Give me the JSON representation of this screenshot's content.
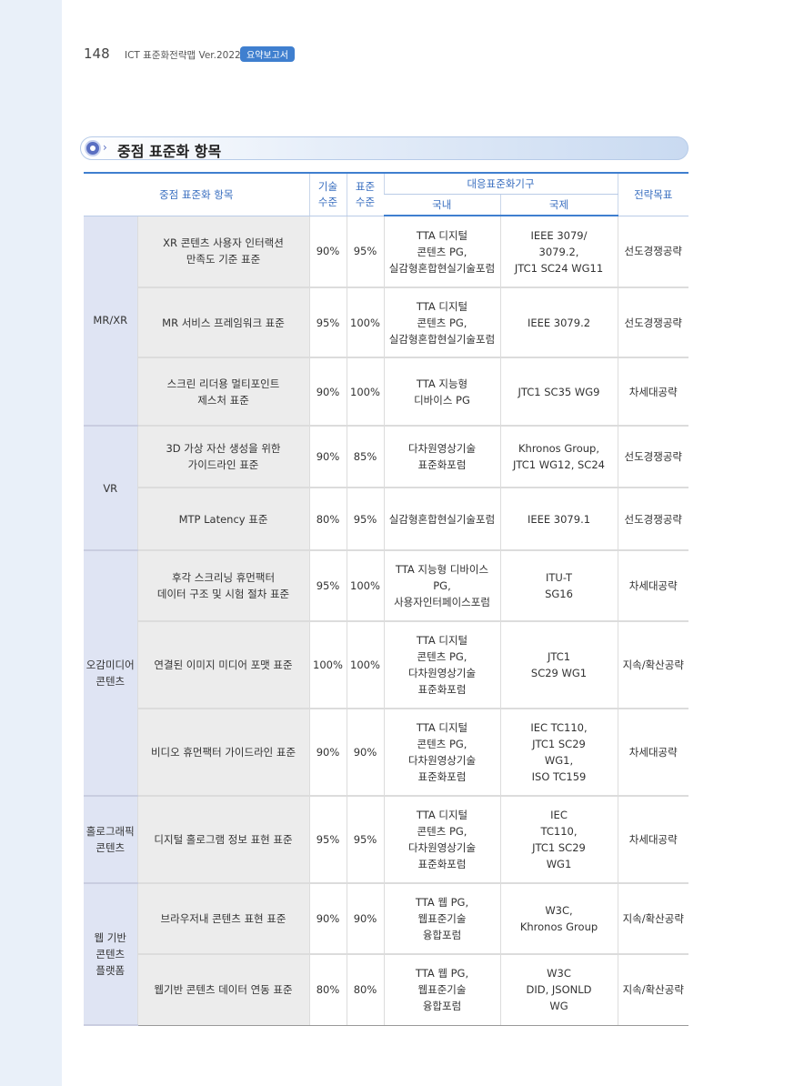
{
  "header": {
    "page_number": "148",
    "running_title": "ICT 표준화전략맵 Ver.2022",
    "badge": "요약보고서"
  },
  "section": {
    "title": "중점 표준화 항목"
  },
  "table": {
    "headers": {
      "item": "중점 표준화 항목",
      "tech": "기술\n수준",
      "std": "표준\n수준",
      "org": "대응표준화기구",
      "domestic": "국내",
      "intl": "국제",
      "goal": "전략목표"
    },
    "groups": [
      {
        "name": "MR/XR",
        "rows": [
          {
            "item": "XR 콘텐츠 사용자 인터랙션\n만족도 기준 표준",
            "tech": "90%",
            "std": "95%",
            "domestic": "TTA 디지털\n콘텐츠 PG,\n실감형혼합현실기술포럼",
            "intl": "IEEE 3079/\n3079.2,\nJTC1 SC24 WG11",
            "goal": "선도경쟁공략"
          },
          {
            "item": "MR 서비스 프레임워크 표준",
            "tech": "95%",
            "std": "100%",
            "domestic": "TTA 디지털\n콘텐츠 PG,\n실감형혼합현실기술포럼",
            "intl": "IEEE 3079.2",
            "goal": "선도경쟁공략"
          },
          {
            "item": "스크린 리더용 멀티포인트\n제스처 표준",
            "tech": "90%",
            "std": "100%",
            "domestic": "TTA 지능형\n디바이스 PG",
            "intl": "JTC1 SC35 WG9",
            "goal": "차세대공략"
          }
        ]
      },
      {
        "name": "VR",
        "rows": [
          {
            "item": "3D 가상 자산 생성을 위한\n가이드라인 표준",
            "tech": "90%",
            "std": "85%",
            "domestic": "다차원영상기술\n표준화포럼",
            "intl": "Khronos Group,\nJTC1  WG12, SC24",
            "goal": "선도경쟁공략"
          },
          {
            "item": "MTP Latency 표준",
            "tech": "80%",
            "std": "95%",
            "domestic": "실감형혼합현실기술포럼",
            "intl": "IEEE 3079.1",
            "goal": "선도경쟁공략"
          }
        ]
      },
      {
        "name": "오감미디어\n콘텐츠",
        "rows": [
          {
            "item": "후각 스크리닝 휴먼팩터\n데이터 구조 및 시험 절차 표준",
            "tech": "95%",
            "std": "100%",
            "domestic": "TTA 지능형 디바이스 PG,\n사용자인터페이스포럼",
            "intl": "ITU-T\nSG16",
            "goal": "차세대공략"
          },
          {
            "item": "연결된 이미지 미디어 포맷 표준",
            "tech": "100%",
            "std": "100%",
            "domestic": "TTA 디지털\n콘텐츠 PG,\n다차원영상기술\n표준화포럼",
            "intl": "JTC1\nSC29 WG1",
            "goal": "지속/확산공략"
          },
          {
            "item": "비디오 휴먼팩터 가이드라인 표준",
            "tech": "90%",
            "std": "90%",
            "domestic": "TTA 디지털\n콘텐츠 PG,\n다차원영상기술\n표준화포럼",
            "intl": "IEC  TC110,\nJTC1 SC29\nWG1,\nISO TC159",
            "goal": "차세대공략"
          }
        ]
      },
      {
        "name": "홀로그래픽\n콘텐츠",
        "rows": [
          {
            "item": "디지털 홀로그램 정보 표현 표준",
            "tech": "95%",
            "std": "95%",
            "domestic": "TTA 디지털\n콘텐츠 PG,\n다차원영상기술\n표준화포럼",
            "intl": "IEC\nTC110,\nJTC1 SC29\nWG1",
            "goal": "차세대공략"
          }
        ]
      },
      {
        "name": "웹 기반\n콘텐츠\n플랫폼",
        "rows": [
          {
            "item": "브라우저내 콘텐츠 표현 표준",
            "tech": "90%",
            "std": "90%",
            "domestic": "TTA 웹 PG,\n웹표준기술\n융합포럼",
            "intl": "W3C,\nKhronos Group",
            "goal": "지속/확산공략"
          },
          {
            "item": "웹기반 콘텐츠 데이터 연동 표준",
            "tech": "80%",
            "std": "80%",
            "domestic": "TTA 웹 PG,\n웹표준기술\n융합포럼",
            "intl": "W3C\nDID, JSONLD\nWG",
            "goal": "지속/확산공략"
          }
        ]
      }
    ]
  }
}
